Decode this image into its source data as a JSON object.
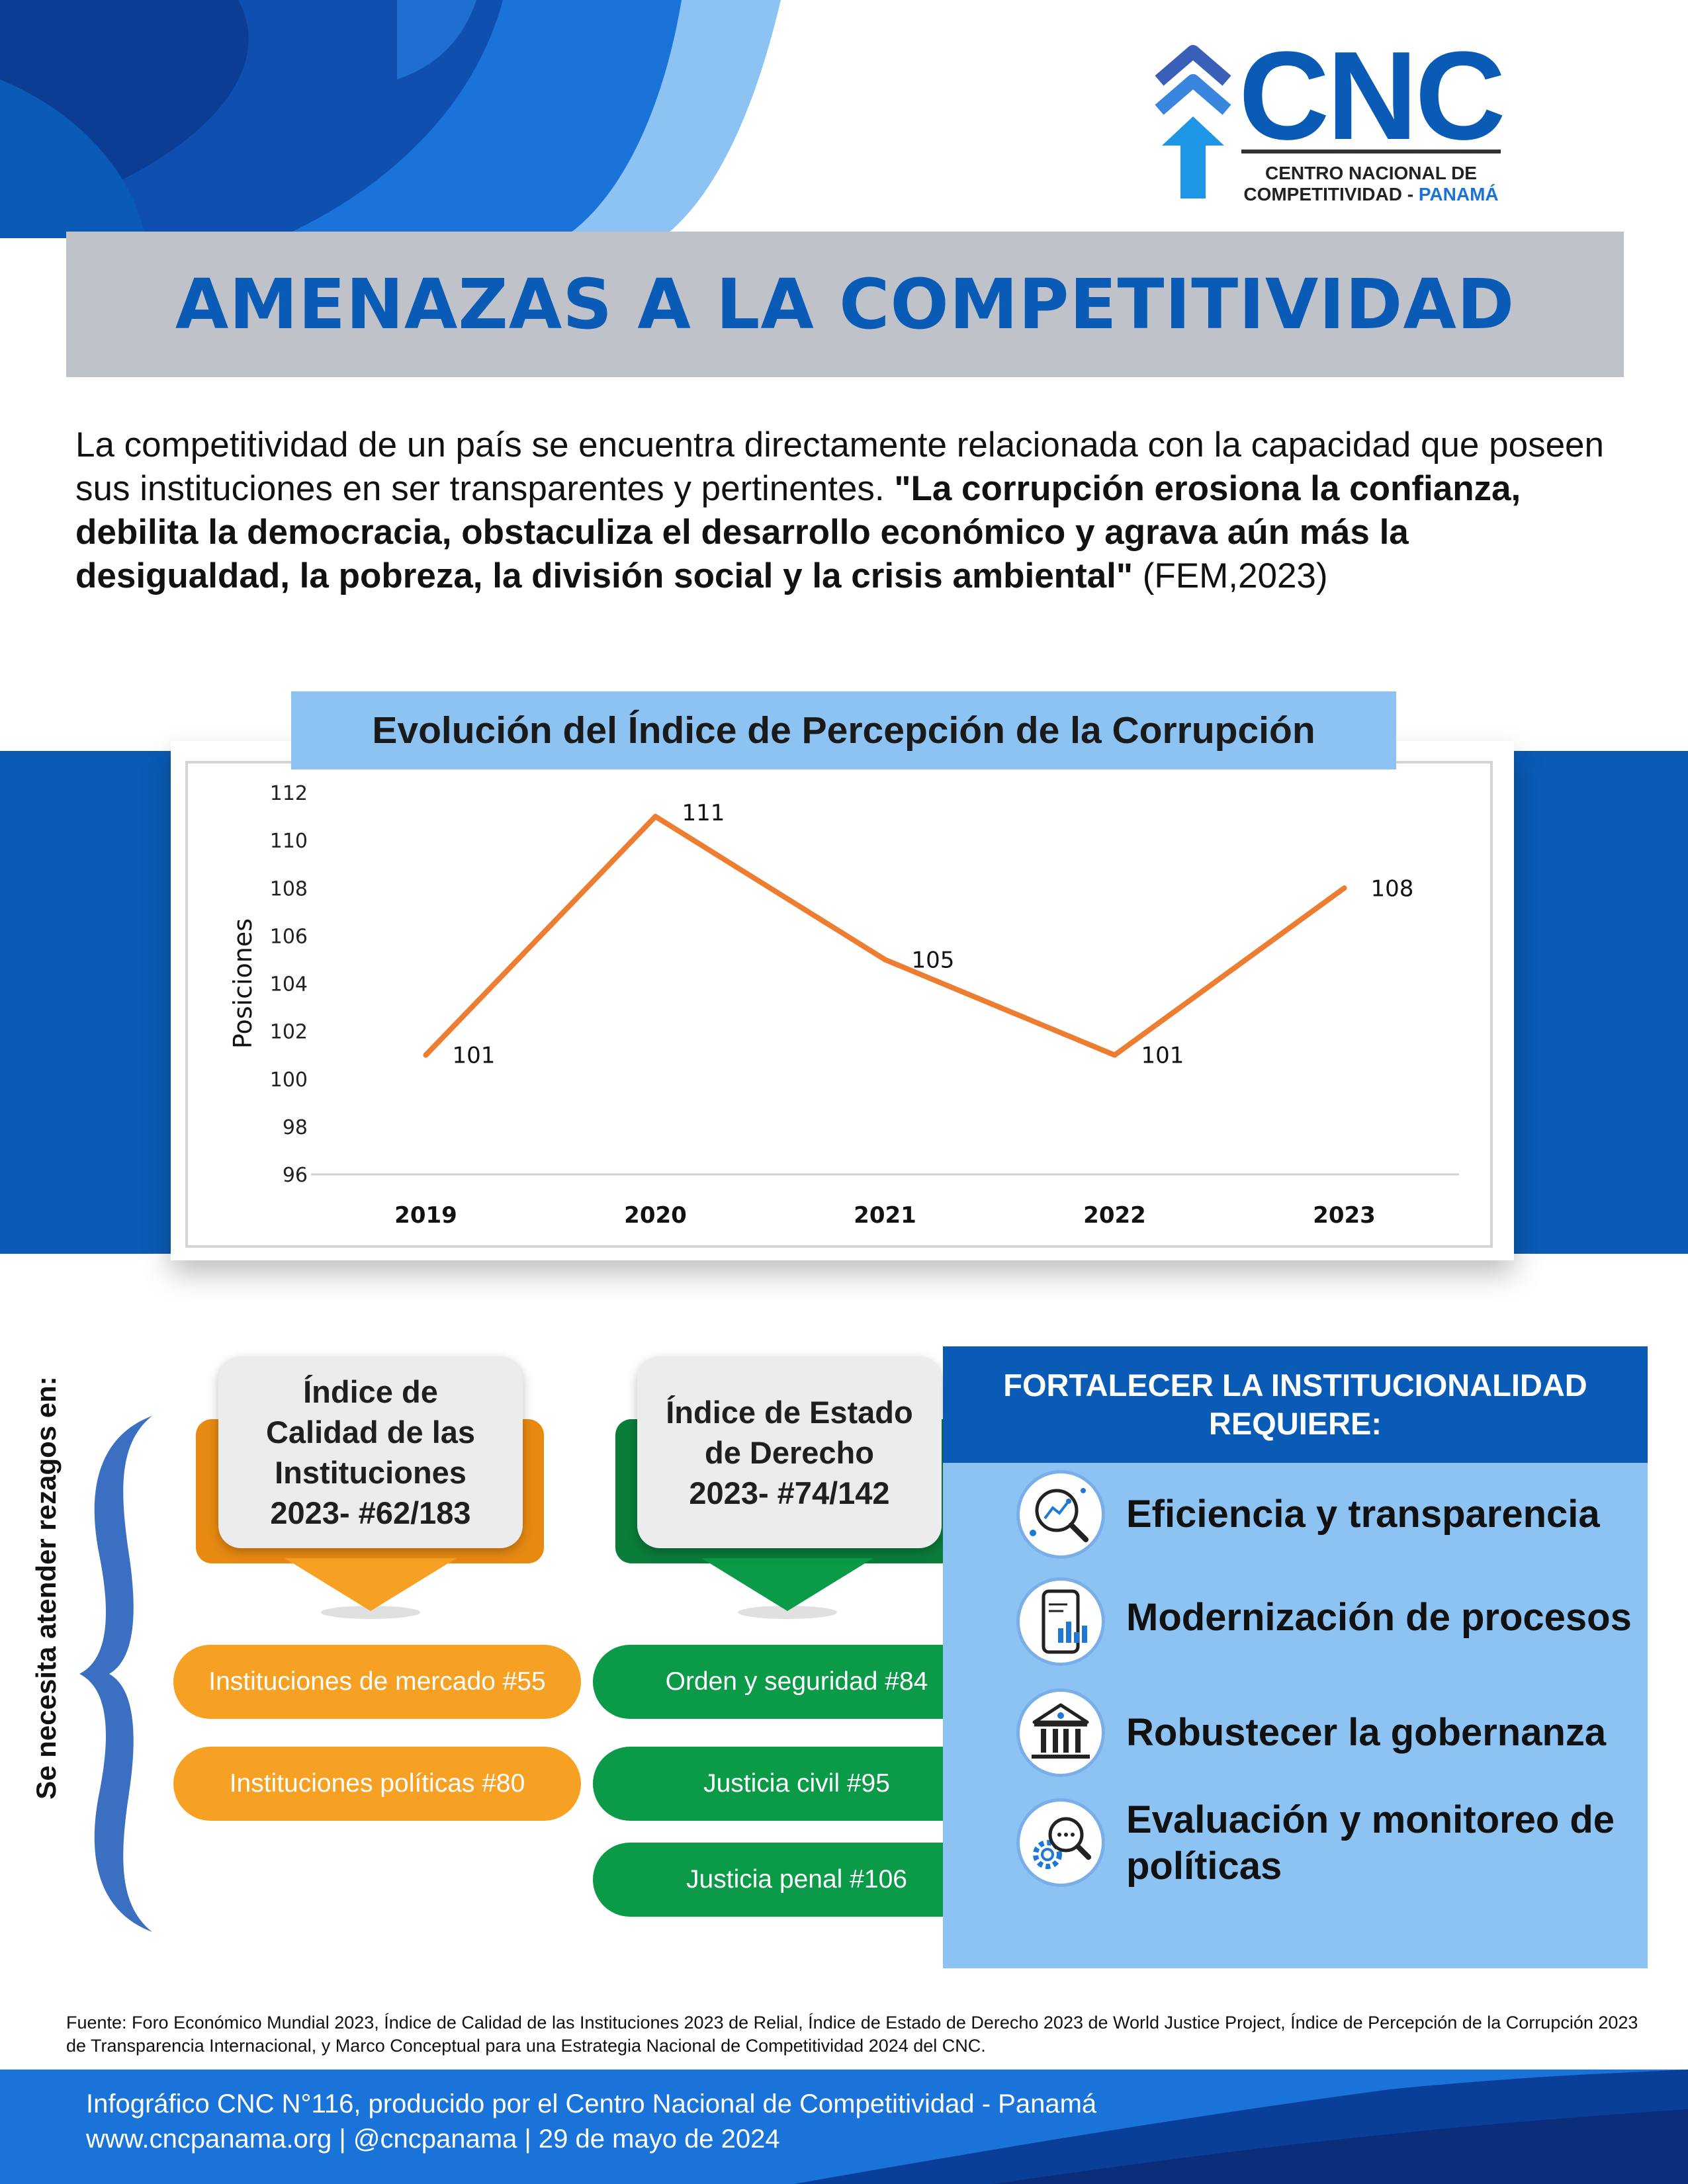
{
  "logo": {
    "name": "CNC",
    "subtitle_line1": "CENTRO NACIONAL DE",
    "subtitle_line2_prefix": "COMPETITIVIDAD - ",
    "subtitle_line2_suffix": "PANAMÁ"
  },
  "title": "AMENAZAS A LA COMPETITIVIDAD",
  "intro": {
    "plain": "La competitividad de un país se encuentra directamente relacionada con la capacidad que poseen sus instituciones en ser transparentes y pertinentes. ",
    "quote": "\"La corrupción erosiona la confianza, debilita la democracia, obstaculiza el desarrollo económico y agrava aún más la desigualdad, la pobreza, la división social y la crisis ambiental\"",
    "citation": " (FEM,2023)"
  },
  "chart_title": "Evolución del Índice de Percepción de la Corrupción",
  "chart_data": {
    "type": "line",
    "x": [
      "2019",
      "2020",
      "2021",
      "2022",
      "2023"
    ],
    "values": [
      101,
      111,
      105,
      101,
      108
    ],
    "data_labels": [
      "101",
      "111",
      "105",
      "101",
      "108"
    ],
    "ylabel": "Posiciones",
    "xlabel": "",
    "ylim": [
      96,
      112
    ],
    "yticks": [
      "96",
      "98",
      "100",
      "102",
      "104",
      "106",
      "108",
      "110",
      "112"
    ],
    "grid": false,
    "line_color": "#ed7d31"
  },
  "side_label": "Se necesita atender rezagos en:",
  "cards": {
    "calidad": {
      "line1": "Índice de",
      "line2": "Calidad de las",
      "line3": "Instituciones",
      "line4": "2023- #62/183"
    },
    "derecho": {
      "line1": "Índice de Estado",
      "line2": "de Derecho",
      "line3": "2023- #74/142"
    }
  },
  "pills": {
    "mercado": "Instituciones de mercado #55",
    "politicas": "Instituciones políticas #80",
    "orden": "Orden y seguridad #84",
    "civil": "Justicia civil #95",
    "penal": "Justicia penal #106"
  },
  "requirements": {
    "heading_line1": "FORTALECER LA INSTITUCIONALIDAD",
    "heading_line2": "REQUIERE:",
    "items": [
      {
        "label": "Eficiencia y transparencia",
        "icon": "analytics-magnifier-icon"
      },
      {
        "label": "Modernización de procesos",
        "icon": "mobile-dashboard-icon"
      },
      {
        "label": "Robustecer la gobernanza",
        "icon": "government-building-icon"
      },
      {
        "label_line1": "Evaluación y monitoreo de",
        "label_line2": "políticas",
        "icon": "gear-search-icon"
      }
    ]
  },
  "source": "Fuente: Foro Económico Mundial 2023, Índice de Calidad de las Instituciones 2023 de Relial, Índice de Estado de Derecho 2023 de World Justice Project, Índice de Percepción de la Corrupción 2023 de Transparencia Internacional, y Marco Conceptual para una Estrategia Nacional de Competitividad 2024 del CNC.",
  "footer": {
    "line1": "Infográfico CNC N°116, producido por el Centro Nacional de Competitividad - Panamá",
    "line2": "www.cncpanama.org | @cncpanama | 29 de mayo de 2024"
  },
  "colors": {
    "brand_blue": "#0a5bb5",
    "light_blue": "#8cc3f3",
    "orange": "#f7a124",
    "green": "#0b9a47",
    "chart_line": "#ed7d31"
  }
}
